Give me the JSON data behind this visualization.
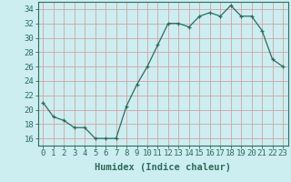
{
  "x": [
    0,
    1,
    2,
    3,
    4,
    5,
    6,
    7,
    8,
    9,
    10,
    11,
    12,
    13,
    14,
    15,
    16,
    17,
    18,
    19,
    20,
    21,
    22,
    23
  ],
  "y": [
    21,
    19,
    18.5,
    17.5,
    17.5,
    16,
    16,
    16,
    20.5,
    23.5,
    26,
    29,
    32,
    32,
    31.5,
    33,
    33.5,
    33,
    34.5,
    33,
    33,
    31,
    27,
    26
  ],
  "line_color": "#2d6b5e",
  "marker": "+",
  "marker_color": "#2d6b5e",
  "bg_color": "#cceef0",
  "grid_color": "#d4a0a8",
  "xlabel": "Humidex (Indice chaleur)",
  "ylabel_ticks": [
    16,
    18,
    20,
    22,
    24,
    26,
    28,
    30,
    32,
    34
  ],
  "xlim": [
    -0.5,
    23.5
  ],
  "ylim": [
    15.0,
    35.0
  ],
  "xticks": [
    0,
    1,
    2,
    3,
    4,
    5,
    6,
    7,
    8,
    9,
    10,
    11,
    12,
    13,
    14,
    15,
    16,
    17,
    18,
    19,
    20,
    21,
    22,
    23
  ],
  "xlabel_fontsize": 7.5,
  "tick_fontsize": 6.5,
  "spine_color": "#2d6b5e",
  "tick_color": "#2d6b5e"
}
